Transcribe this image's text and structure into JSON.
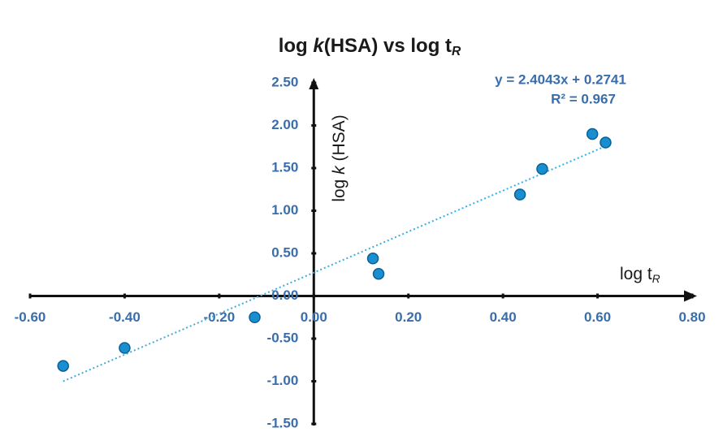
{
  "chart_data": {
    "type": "scatter",
    "title_parts": [
      "log ",
      "k",
      "(HSA) vs log t",
      "R"
    ],
    "x_label_parts": [
      "log t",
      "R"
    ],
    "y_label_parts": [
      "log ",
      "k",
      " (HSA)"
    ],
    "x": [
      -0.53,
      -0.4,
      -0.125,
      0.125,
      0.137,
      0.436,
      0.483,
      0.589,
      0.617
    ],
    "values": [
      -0.82,
      -0.61,
      -0.25,
      0.44,
      0.26,
      1.19,
      1.49,
      1.9,
      1.8
    ],
    "color": "#1a8fd0",
    "trendline": {
      "slope": 2.4043,
      "intercept": 0.2741,
      "color": "#3aaee0",
      "equation": "y = 2.4043x + 0.2741",
      "r2": "R² = 0.967"
    },
    "xlim": [
      -0.6,
      0.8
    ],
    "ylim": [
      -1.5,
      2.5
    ],
    "xticks": [
      {
        "value": -0.6,
        "label": "-0.60"
      },
      {
        "value": -0.4,
        "label": "-0.40"
      },
      {
        "value": -0.2,
        "label": "-0.20"
      },
      {
        "value": 0,
        "label": "0.00"
      },
      {
        "value": 0.2,
        "label": "0.20"
      },
      {
        "value": 0.4,
        "label": "0.40"
      },
      {
        "value": 0.6,
        "label": "0.60"
      },
      {
        "value": 0.8,
        "label": "0.80"
      }
    ],
    "yticks": [
      {
        "value": -1.5,
        "label": "-1.50"
      },
      {
        "value": -1,
        "label": "-1.00"
      },
      {
        "value": -0.5,
        "label": "-0.50"
      },
      {
        "value": 0,
        "label": "0.00"
      },
      {
        "value": 0.5,
        "label": "0.50"
      },
      {
        "value": 1,
        "label": "1.00"
      },
      {
        "value": 1.5,
        "label": "1.50"
      },
      {
        "value": 2,
        "label": "2.00"
      },
      {
        "value": 2.5,
        "label": "2.50"
      }
    ],
    "grid": false
  }
}
